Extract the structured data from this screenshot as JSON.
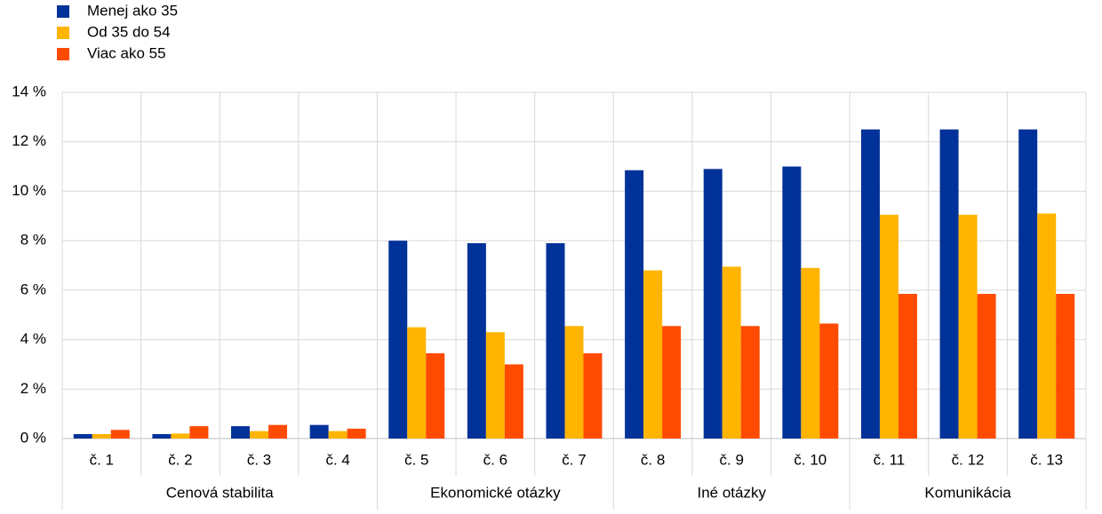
{
  "chart_data": {
    "type": "bar",
    "categories": [
      "č. 1",
      "č. 2",
      "č. 3",
      "č. 4",
      "č. 5",
      "č. 6",
      "č. 7",
      "č. 8",
      "č. 9",
      "č. 10",
      "č. 11",
      "č. 12",
      "č. 13"
    ],
    "category_groups": [
      "Cenová stabilita",
      "Cenová stabilita",
      "Cenová stabilita",
      "Cenová stabilita",
      "Ekonomické otázky",
      "Ekonomické otázky",
      "Ekonomické otázky",
      "Iné otázky",
      "Iné otázky",
      "Iné otázky",
      "Komunikácia",
      "Komunikácia",
      "Komunikácia"
    ],
    "series": [
      {
        "name": "Menej ako 35",
        "color": "#003299",
        "values": [
          0.18,
          0.18,
          0.5,
          0.55,
          8.0,
          7.9,
          7.9,
          10.85,
          10.9,
          11.0,
          12.5,
          12.5,
          12.5
        ]
      },
      {
        "name": "Od 35 do 54",
        "color": "#ffb400",
        "values": [
          0.18,
          0.2,
          0.3,
          0.3,
          4.5,
          4.3,
          4.55,
          6.8,
          6.95,
          6.9,
          9.05,
          9.05,
          9.1
        ]
      },
      {
        "name": "Viac ako 55",
        "color": "#ff4b00",
        "values": [
          0.35,
          0.5,
          0.55,
          0.4,
          3.45,
          3.0,
          3.45,
          4.55,
          4.55,
          4.65,
          5.85,
          5.85,
          5.85
        ]
      }
    ],
    "ylim": [
      0,
      14
    ],
    "yticks": [
      {
        "value": 0,
        "label": "0 %"
      },
      {
        "value": 2,
        "label": "2 %"
      },
      {
        "value": 4,
        "label": "4 %"
      },
      {
        "value": 6,
        "label": "6 %"
      },
      {
        "value": 8,
        "label": "8 %"
      },
      {
        "value": 10,
        "label": "10 %"
      },
      {
        "value": 12,
        "label": "12 %"
      },
      {
        "value": 14,
        "label": "14 %"
      }
    ],
    "grid": true,
    "legend": "top-left"
  }
}
